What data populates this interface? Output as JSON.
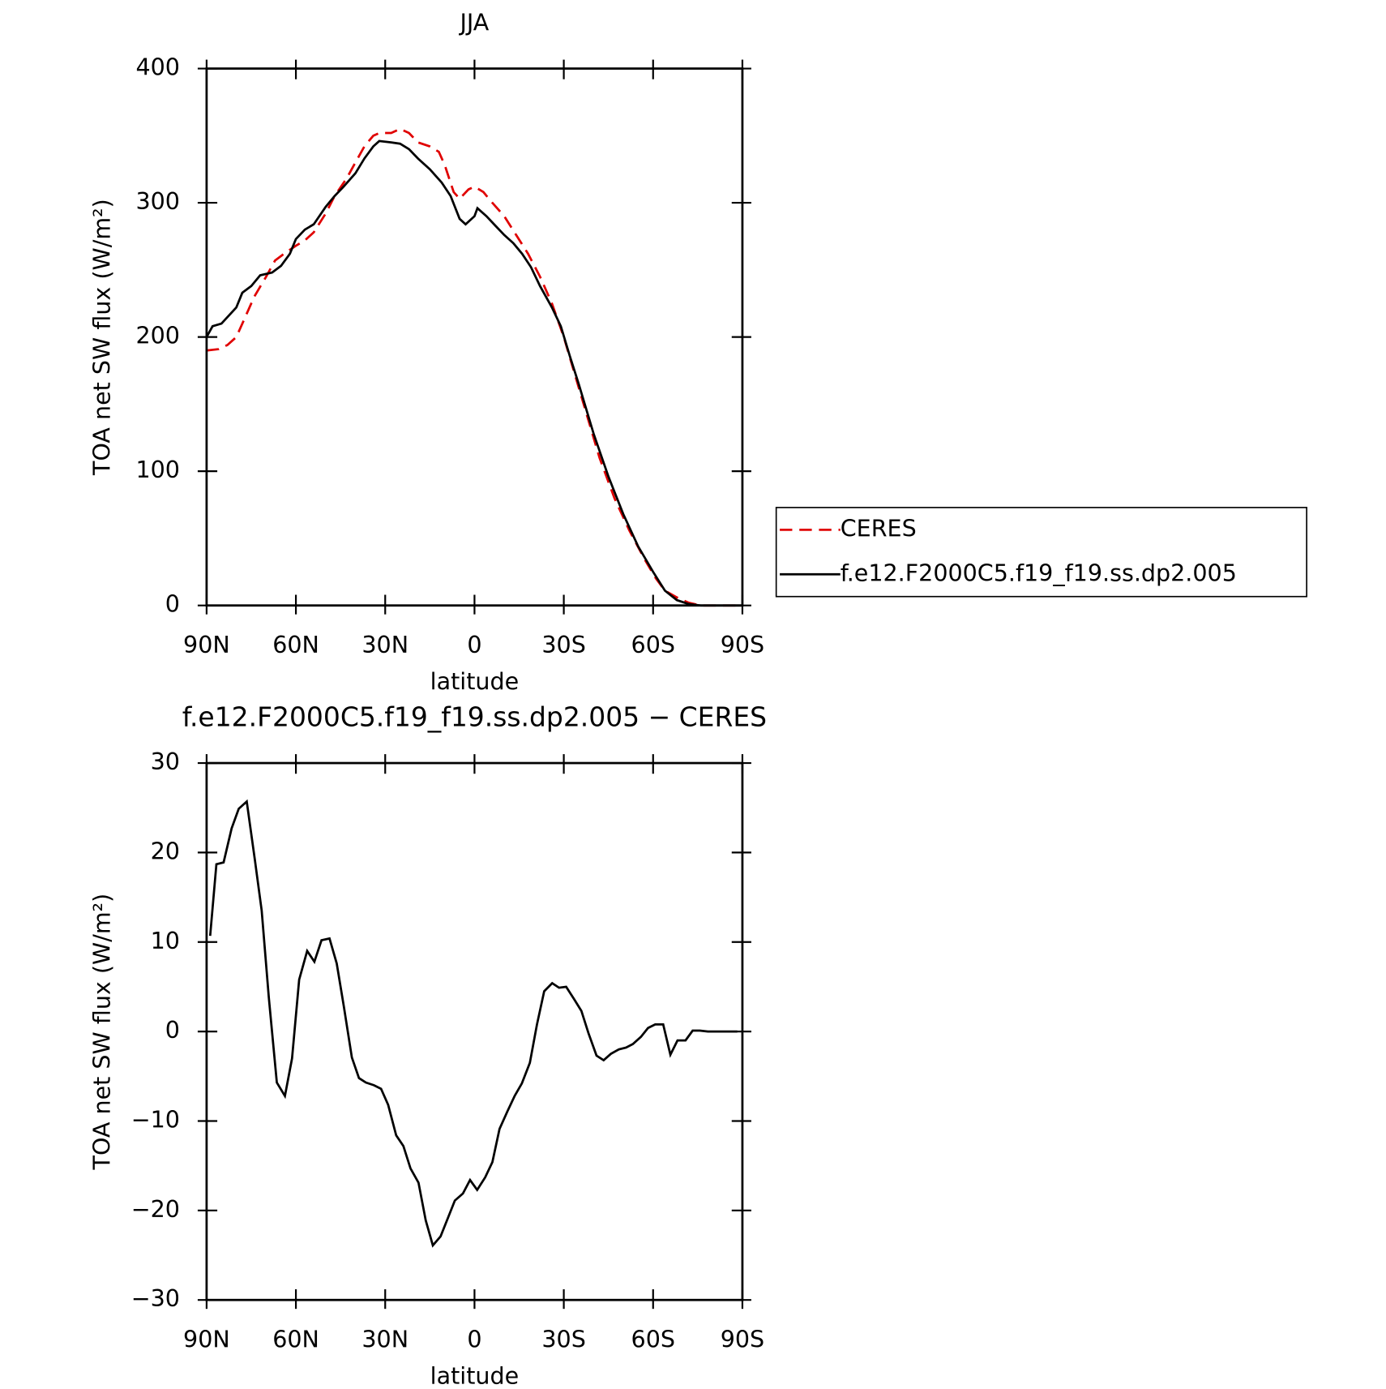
{
  "chart_data": [
    {
      "type": "line",
      "title": "JJA",
      "xlabel": "latitude",
      "ylabel": "TOA net SW flux (W/m²)",
      "xlim": [
        90,
        -90
      ],
      "xticks": [
        {
          "value": 90,
          "label": "90N"
        },
        {
          "value": 60,
          "label": "60N"
        },
        {
          "value": 30,
          "label": "30N"
        },
        0,
        {
          "value": -30,
          "label": "30S"
        },
        {
          "value": -60,
          "label": "60S"
        },
        {
          "value": -90,
          "label": "90S"
        }
      ],
      "ylim": [
        0,
        400
      ],
      "yticks": [
        0,
        100,
        200,
        300,
        400
      ],
      "legend": "outside-right",
      "series": [
        {
          "name": "CERES",
          "color": "#e00000",
          "dashed": true,
          "x": [
            90,
            86,
            83,
            80,
            77,
            74,
            70,
            67,
            64,
            60,
            57,
            54,
            50,
            47,
            43,
            40,
            37,
            34,
            32,
            28,
            25,
            22,
            19,
            15,
            12,
            10,
            7,
            5,
            2,
            0,
            -3,
            -6,
            -10,
            -14,
            -18,
            -22,
            -26,
            -30,
            -34,
            -38,
            -42,
            -47,
            -52,
            -57,
            -61,
            -64,
            -68,
            -72,
            -76,
            -80,
            -90
          ],
          "values": [
            190,
            191,
            194,
            200,
            215,
            230,
            245,
            257,
            262,
            268,
            272,
            278,
            292,
            305,
            318,
            330,
            342,
            350,
            352,
            352,
            355,
            352,
            345,
            342,
            338,
            328,
            308,
            303,
            310,
            312,
            308,
            300,
            290,
            276,
            262,
            245,
            225,
            200,
            170,
            140,
            110,
            80,
            56,
            35,
            20,
            11,
            6,
            2,
            0,
            0,
            0
          ]
        },
        {
          "name": "f.e12.F2000C5.f19_f19.ss.dp2.005",
          "color": "#000000",
          "dashed": false,
          "x": [
            90,
            88,
            85,
            80,
            78,
            75,
            72,
            68,
            65,
            62,
            60,
            57,
            54,
            50,
            47,
            44,
            40,
            37,
            34,
            32,
            28,
            25,
            22,
            19,
            15,
            11,
            8,
            5,
            3,
            0,
            -1,
            -4,
            -7,
            -10,
            -13,
            -16,
            -19,
            -22,
            -26,
            -29,
            -32,
            -35,
            -40,
            -45,
            -50,
            -55,
            -60,
            -64,
            -68,
            -72,
            -76,
            -80,
            -90
          ],
          "values": [
            200,
            208,
            210,
            222,
            233,
            238,
            246,
            248,
            253,
            262,
            273,
            280,
            284,
            297,
            305,
            312,
            322,
            333,
            342,
            346,
            345,
            344,
            340,
            333,
            325,
            315,
            305,
            288,
            284,
            290,
            296,
            290,
            283,
            276,
            270,
            262,
            252,
            238,
            222,
            208,
            186,
            165,
            128,
            96,
            68,
            44,
            25,
            11,
            4,
            1,
            0,
            0,
            0
          ]
        }
      ]
    },
    {
      "type": "line",
      "title": "f.e12.F2000C5.f19_f19.ss.dp2.005 − CERES",
      "xlabel": "latitude",
      "ylabel": "TOA net SW flux (W/m²)",
      "xlim": [
        90,
        -90
      ],
      "xticks": [
        {
          "value": 90,
          "label": "90N"
        },
        {
          "value": 60,
          "label": "60N"
        },
        {
          "value": 30,
          "label": "30N"
        },
        0,
        {
          "value": -30,
          "label": "30S"
        },
        {
          "value": -60,
          "label": "60S"
        },
        {
          "value": -90,
          "label": "90S"
        }
      ],
      "ylim": [
        -30,
        30
      ],
      "yticks": [
        {
          "value": -30,
          "label": "−30"
        },
        {
          "value": -20,
          "label": "−20"
        },
        {
          "value": -10,
          "label": "−10"
        },
        0,
        10,
        20,
        30
      ],
      "series": [
        {
          "color": "#000000",
          "dashed": false,
          "x": [
            88.8,
            86.7,
            84.3,
            81.6,
            79.2,
            76.5,
            73.8,
            71.5,
            69.1,
            66.4,
            63.7,
            61.3,
            58.9,
            56.2,
            53.8,
            51.4,
            48.7,
            46.3,
            43.9,
            41.2,
            38.8,
            36.5,
            33.8,
            31.4,
            29.0,
            26.3,
            23.9,
            21.5,
            18.8,
            16.4,
            14.0,
            11.4,
            9.0,
            6.6,
            3.9,
            1.5,
            -0.9,
            -3.6,
            -6.0,
            -8.4,
            -11.1,
            -13.5,
            -15.9,
            -18.6,
            -21.0,
            -23.4,
            -26.1,
            -28.4,
            -30.8,
            -33.5,
            -35.9,
            -38.3,
            -41.0,
            -43.4,
            -45.8,
            -48.5,
            -50.9,
            -53.2,
            -55.9,
            -58.3,
            -60.7,
            -63.4,
            -65.8,
            -68.2,
            -70.9,
            -73.3,
            -75.7,
            -78.4,
            -80.8,
            -83.2,
            -85.9,
            -88.3
          ],
          "values": [
            10.7,
            18.7,
            18.9,
            22.7,
            24.9,
            25.7,
            19.2,
            13.5,
            3.8,
            -5.7,
            -7.2,
            -3.0,
            5.8,
            9.0,
            7.8,
            10.2,
            10.4,
            7.6,
            2.8,
            -2.9,
            -5.2,
            -5.7,
            -6.0,
            -6.4,
            -8.2,
            -11.6,
            -12.8,
            -15.3,
            -16.9,
            -21.1,
            -23.9,
            -22.9,
            -20.9,
            -18.9,
            -18.1,
            -16.6,
            -17.7,
            -16.3,
            -14.6,
            -10.9,
            -8.9,
            -7.2,
            -5.8,
            -3.5,
            0.8,
            4.5,
            5.4,
            4.9,
            5.0,
            3.6,
            2.3,
            -0.2,
            -2.7,
            -3.2,
            -2.5,
            -2.0,
            -1.8,
            -1.4,
            -0.6,
            0.4,
            0.8,
            0.8,
            -2.6,
            -1.0,
            -1.0,
            0.1,
            0.1,
            0,
            0,
            0,
            0,
            0
          ]
        }
      ]
    }
  ]
}
